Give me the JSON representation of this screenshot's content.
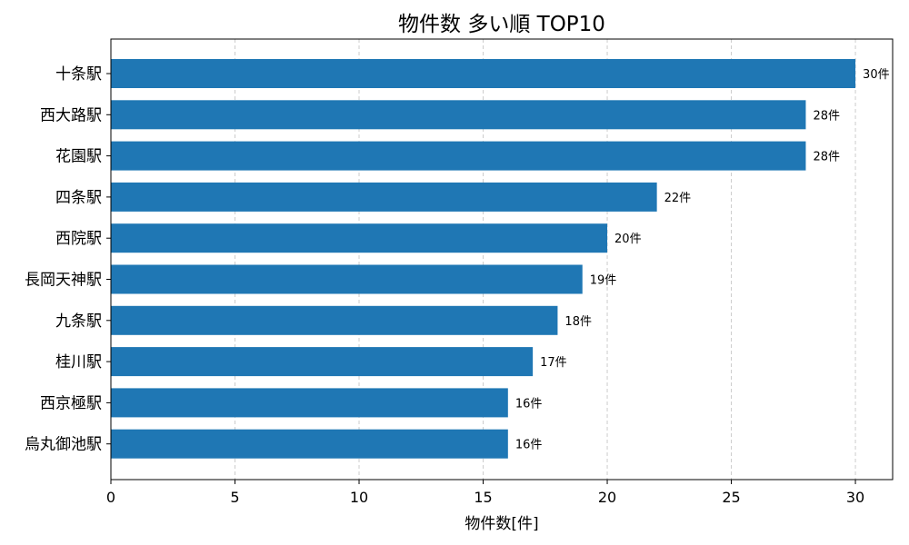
{
  "chart_data": {
    "type": "bar",
    "orientation": "horizontal",
    "title": "物件数 多い順 TOP10",
    "xlabel": "物件数[件]",
    "ylabel": "",
    "xlim": [
      0,
      31.5
    ],
    "xticks": [
      0,
      5,
      10,
      15,
      20,
      25,
      30
    ],
    "grid": "x-dashed",
    "bar_color": "#1f77b4",
    "categories": [
      "十条駅",
      "西大路駅",
      "花園駅",
      "四条駅",
      "西院駅",
      "長岡天神駅",
      "九条駅",
      "桂川駅",
      "西京極駅",
      "烏丸御池駅"
    ],
    "values": [
      30,
      28,
      28,
      22,
      20,
      19,
      18,
      17,
      16,
      16
    ],
    "data_labels": [
      "30件",
      "28件",
      "28件",
      "22件",
      "20件",
      "19件",
      "18件",
      "17件",
      "16件",
      "16件"
    ]
  }
}
